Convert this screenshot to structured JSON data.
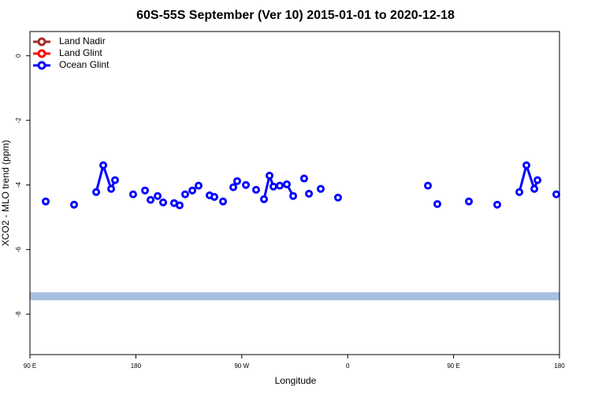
{
  "chart_data": {
    "type": "line",
    "title": "60S-55S September (Ver 10)   2015-01-01 to 2020-12-18",
    "x_label": "Longitude",
    "y_label": "XCO2 - MLO trend (ppm)",
    "xlim": [
      90,
      540
    ],
    "ylim": [
      -9.25,
      0.75
    ],
    "xticks": [
      {
        "value": 90,
        "label": "90 E"
      },
      {
        "value": 180,
        "label": "180"
      },
      {
        "value": 270,
        "label": "90 W"
      },
      {
        "value": 360,
        "label": "0"
      },
      {
        "value": 450,
        "label": "90 E"
      },
      {
        "value": 540,
        "label": "180"
      }
    ],
    "yticks": [
      0,
      -2,
      -4,
      -6,
      -8
    ],
    "legend": "top-left",
    "band": {
      "ymin": -7.57,
      "ymax": -7.32,
      "color": "#a7bfe0"
    },
    "series": [
      {
        "name": "Land Nadir",
        "color": "#a52a2a",
        "x": [],
        "values": []
      },
      {
        "name": "Land Glint",
        "color": "#ff0000",
        "x": [],
        "values": []
      },
      {
        "name": "Ocean Glint",
        "color": "#0000ff",
        "x": [
          103.4,
          null,
          127.5,
          null,
          146.3,
          152.3,
          159.0,
          162.3,
          null,
          177.7,
          null,
          187.8,
          null,
          192.5,
          null,
          198.5,
          null,
          203.2,
          null,
          212.5,
          null,
          217.2,
          null,
          221.9,
          null,
          228.0,
          null,
          233.3,
          null,
          242.7,
          null,
          246.7,
          null,
          254.1,
          null,
          262.8,
          null,
          266.1,
          null,
          273.5,
          null,
          282.2,
          null,
          288.9,
          293.6,
          296.9,
          302.3,
          308.3,
          313.7,
          null,
          323.0,
          null,
          327.1,
          null,
          337.1,
          null,
          351.8,
          null,
          428.2,
          null,
          436.2,
          null,
          463.0,
          null,
          487.1,
          null,
          505.9,
          511.9,
          518.6,
          521.3,
          null,
          537.3
        ],
        "values": [
          -4.51,
          null,
          -4.61,
          null,
          -4.22,
          -3.39,
          -4.12,
          -3.85,
          null,
          -4.29,
          null,
          -4.17,
          null,
          -4.46,
          null,
          -4.34,
          null,
          -4.54,
          null,
          -4.56,
          null,
          -4.63,
          null,
          -4.29,
          null,
          -4.17,
          null,
          -4.02,
          null,
          -4.32,
          null,
          -4.37,
          null,
          -4.51,
          null,
          -4.07,
          null,
          -3.88,
          null,
          -4.0,
          null,
          -4.15,
          null,
          -4.44,
          -3.71,
          -4.05,
          -4.02,
          -3.98,
          -4.34,
          null,
          -3.8,
          null,
          -4.27,
          null,
          -4.12,
          null,
          -4.39,
          null,
          -4.02,
          null,
          -4.59,
          null,
          -4.51,
          null,
          -4.61,
          null,
          -4.22,
          -3.39,
          -4.12,
          -3.85,
          null,
          -4.29
        ]
      }
    ]
  }
}
